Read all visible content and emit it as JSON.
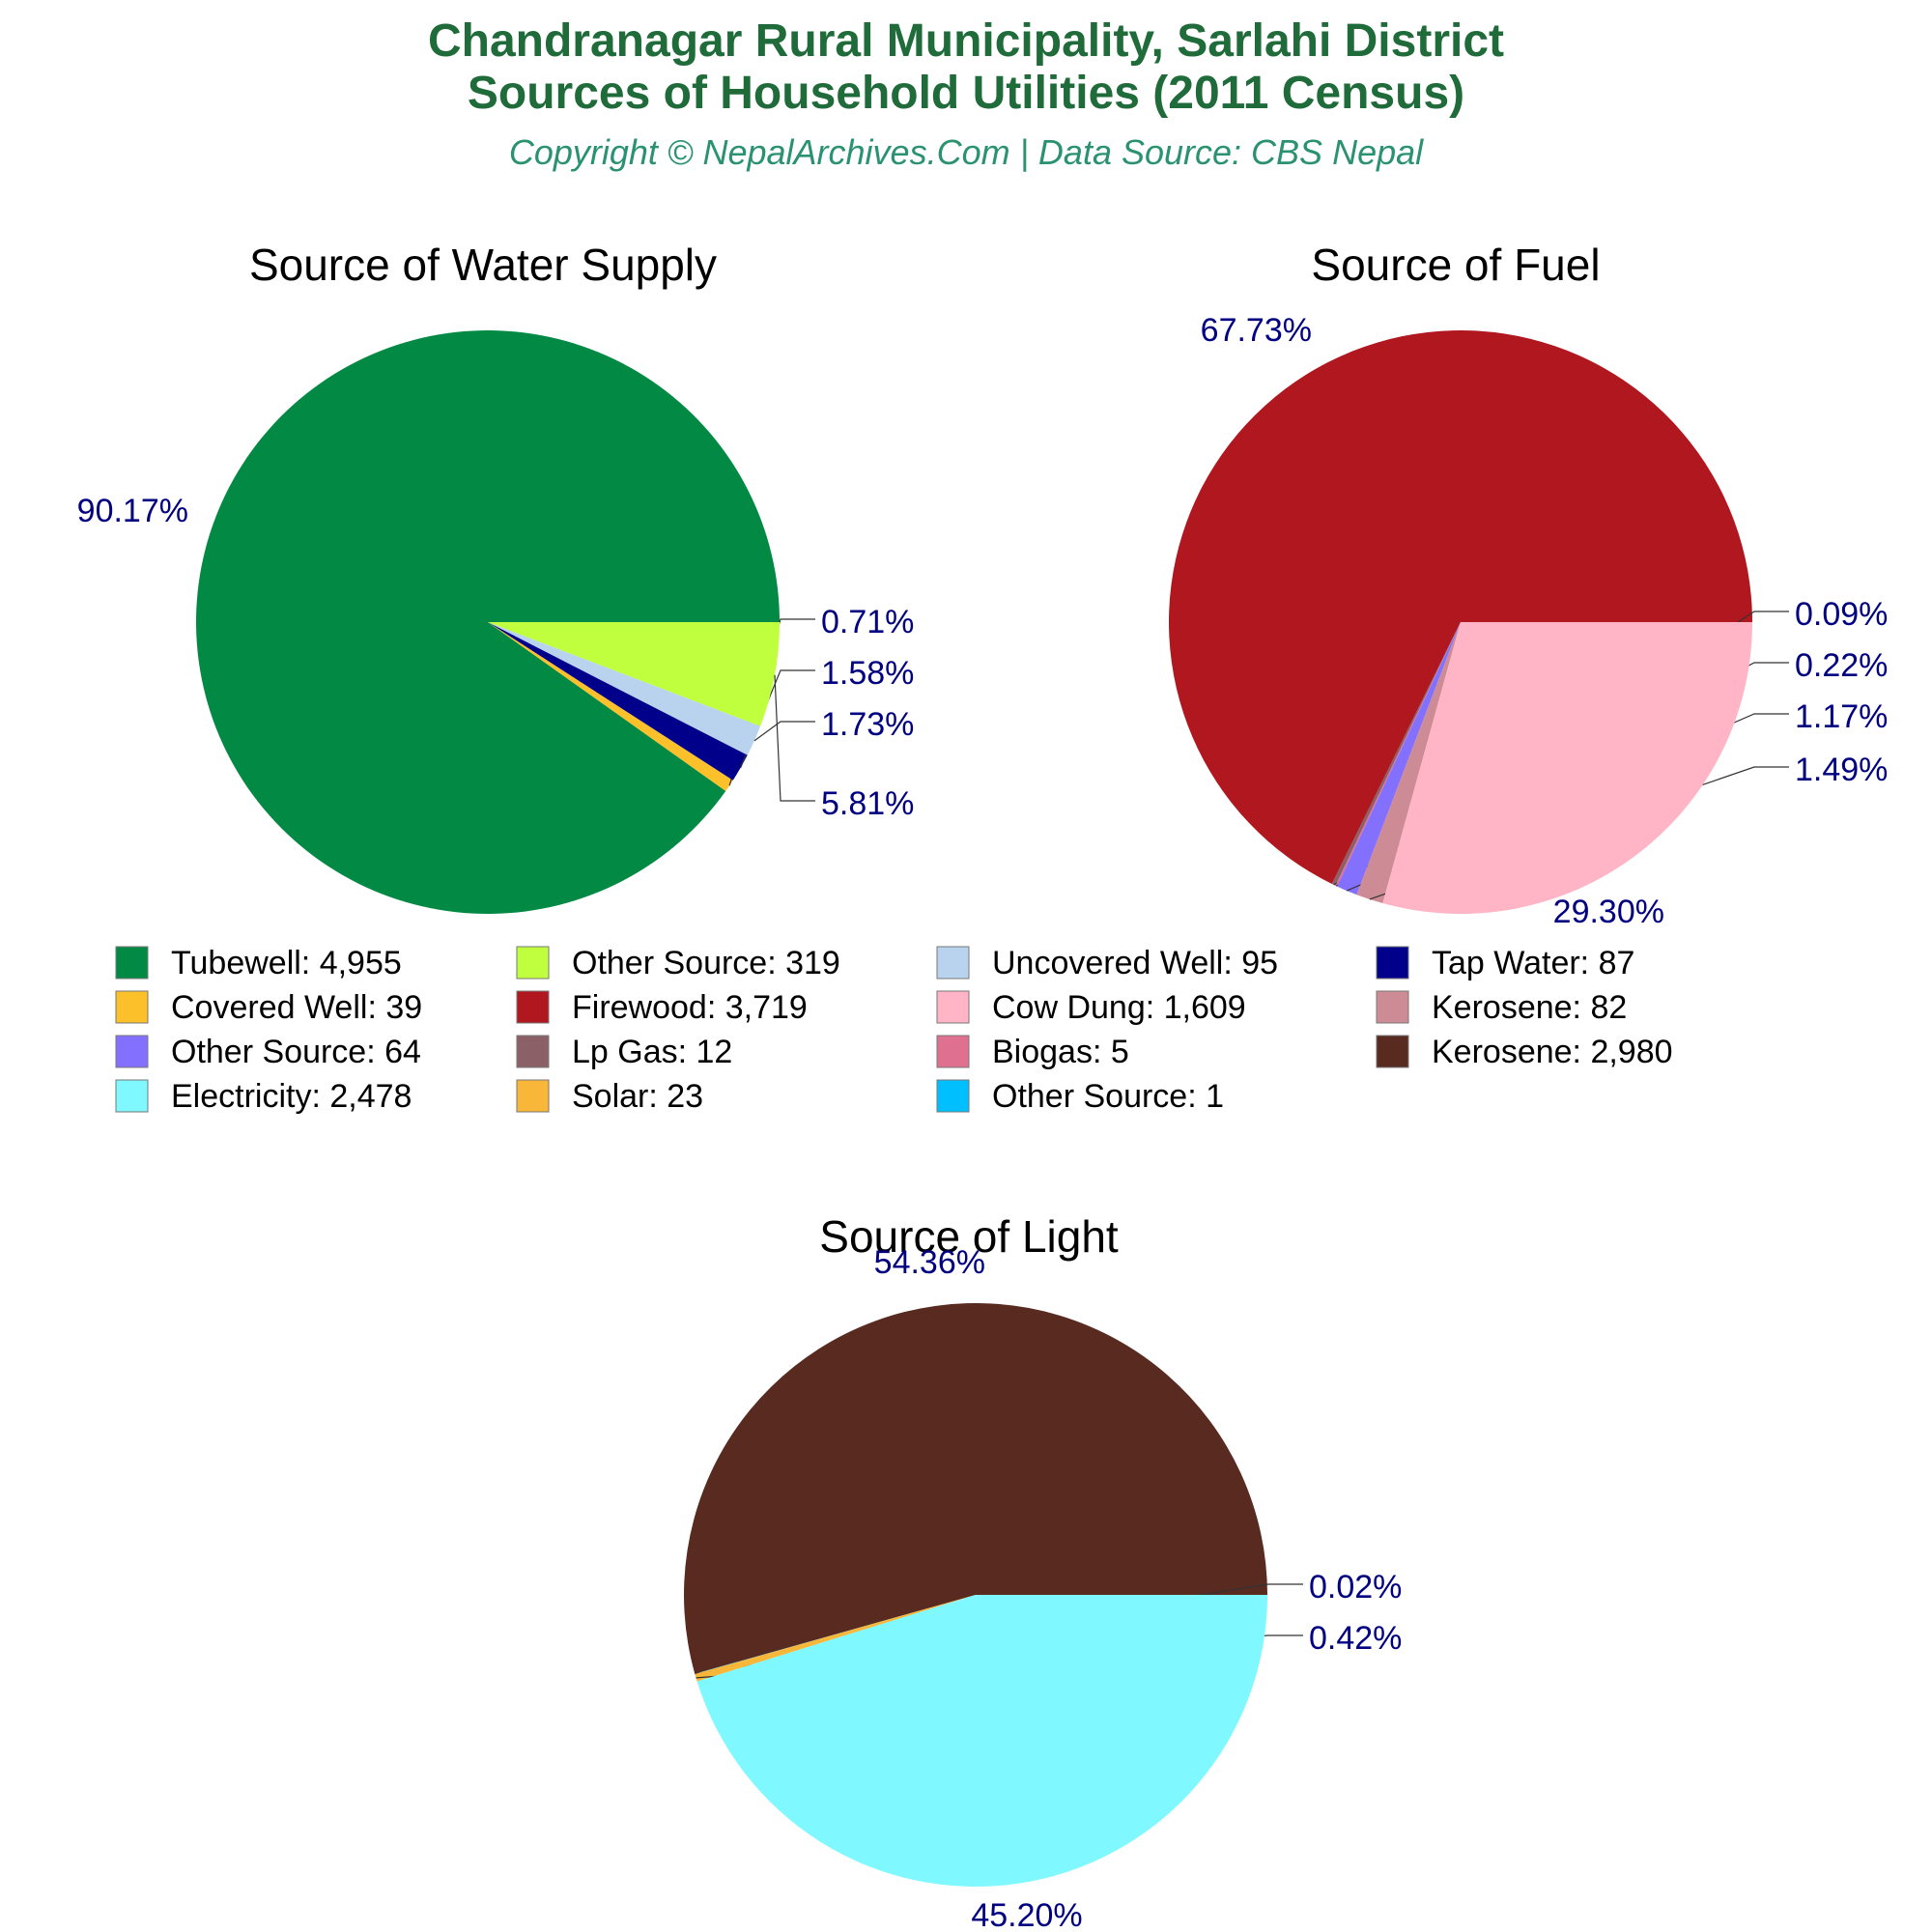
{
  "header": {
    "title_line1": "Chandranagar Rural Municipality, Sarlahi District",
    "title_line2": "Sources of Household Utilities (2011 Census)",
    "subtitle": "Copyright © NepalArchives.Com | Data Source: CBS Nepal",
    "title_color": "#1f6b3a",
    "subtitle_color": "#2a9270"
  },
  "label_color": "#000080",
  "chart_data": [
    {
      "type": "pie",
      "title": "Source of Water Supply",
      "slices": [
        {
          "name": "Tubewell",
          "value": 4955,
          "percent_label": "90.17%",
          "color": "#028a44"
        },
        {
          "name": "Covered Well",
          "value": 39,
          "percent_label": "0.71%",
          "color": "#fcc02a"
        },
        {
          "name": "Tap Water",
          "value": 87,
          "percent_label": "1.58%",
          "color": "#00008b"
        },
        {
          "name": "Uncovered Well",
          "value": 95,
          "percent_label": "1.73%",
          "color": "#b9d3ee"
        },
        {
          "name": "Other Source",
          "value": 319,
          "percent_label": "5.81%",
          "color": "#c0ff3e"
        }
      ]
    },
    {
      "type": "pie",
      "title": "Source of Fuel",
      "slices": [
        {
          "name": "Firewood",
          "value": 3719,
          "percent_label": "67.73%",
          "color": "#b0171f"
        },
        {
          "name": "Lp Gas",
          "value": 12,
          "percent_label": "0.22%",
          "color": "#8b6066"
        },
        {
          "name": "Biogas",
          "value": 5,
          "percent_label": "0.09%",
          "color": "#e07090"
        },
        {
          "name": "Other Source",
          "value": 64,
          "percent_label": "1.17%",
          "color": "#8470ff"
        },
        {
          "name": "Kerosene",
          "value": 82,
          "percent_label": "1.49%",
          "color": "#cd8c95"
        },
        {
          "name": "Cow Dung",
          "value": 1609,
          "percent_label": "29.30%",
          "color": "#ffb5c5"
        }
      ]
    },
    {
      "type": "pie",
      "title": "Source of Light",
      "slices": [
        {
          "name": "Kerosene",
          "value": 2980,
          "percent_label": "54.36%",
          "color": "#582a20"
        },
        {
          "name": "Other Source",
          "value": 1,
          "percent_label": "0.02%",
          "color": "#00bfff"
        },
        {
          "name": "Solar",
          "value": 23,
          "percent_label": "0.42%",
          "color": "#f9b73a"
        },
        {
          "name": "Electricity",
          "value": 2478,
          "percent_label": "45.20%",
          "color": "#7ff8ff"
        }
      ]
    }
  ],
  "legend": [
    {
      "label": "Tubewell: 4,955",
      "color": "#028a44"
    },
    {
      "label": "Other Source: 319",
      "color": "#c0ff3e"
    },
    {
      "label": "Uncovered Well: 95",
      "color": "#b9d3ee"
    },
    {
      "label": "Tap Water: 87",
      "color": "#00008b"
    },
    {
      "label": "Covered Well: 39",
      "color": "#fcc02a"
    },
    {
      "label": "Firewood: 3,719",
      "color": "#b0171f"
    },
    {
      "label": "Cow Dung: 1,609",
      "color": "#ffb5c5"
    },
    {
      "label": "Kerosene: 82",
      "color": "#cd8c95"
    },
    {
      "label": "Other Source: 64",
      "color": "#8470ff"
    },
    {
      "label": "Lp Gas: 12",
      "color": "#8b6066"
    },
    {
      "label": "Biogas: 5",
      "color": "#e07090"
    },
    {
      "label": "Kerosene: 2,980",
      "color": "#582a20"
    },
    {
      "label": "Electricity: 2,478",
      "color": "#7ff8ff"
    },
    {
      "label": "Solar: 23",
      "color": "#f9b73a"
    },
    {
      "label": "Other Source: 1",
      "color": "#00bfff"
    }
  ]
}
